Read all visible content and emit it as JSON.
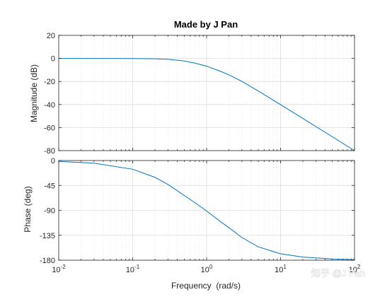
{
  "chart_data": [
    {
      "type": "line",
      "title": "Made by J Pan",
      "xlabel": "",
      "ylabel": "Magnitude (dB)",
      "xscale": "log",
      "xlim": [
        0.01,
        100
      ],
      "ylim": [
        -80,
        20
      ],
      "yticks": [
        20,
        0,
        -20,
        -40,
        -60,
        -80
      ],
      "grid": true,
      "line_color": "#0072bd",
      "series": [
        {
          "name": "",
          "x": [
            0.01,
            0.03,
            0.1,
            0.2,
            0.3,
            0.5,
            0.7,
            1,
            1.5,
            2,
            3,
            5,
            10,
            20,
            50,
            100
          ],
          "y": [
            0,
            -0.01,
            -0.09,
            -0.34,
            -0.79,
            -2.21,
            -4.14,
            -6.74,
            -10.9,
            -14.24,
            -19.91,
            -28.3,
            -40.09,
            -52.06,
            -67.96,
            -80.0
          ]
        }
      ]
    },
    {
      "type": "line",
      "title": "",
      "xlabel": "Frequency  (rad/s)",
      "ylabel": "Phase (deg)",
      "xscale": "log",
      "xlim": [
        0.01,
        100
      ],
      "ylim": [
        -180,
        0
      ],
      "yticks": [
        0,
        -45,
        -90,
        -135,
        -180
      ],
      "xticks": [
        {
          "base": "10",
          "exp": "-2"
        },
        {
          "base": "10",
          "exp": "-1"
        },
        {
          "base": "10",
          "exp": "0"
        },
        {
          "base": "10",
          "exp": "1"
        },
        {
          "base": "10",
          "exp": "2"
        }
      ],
      "grid": true,
      "line_color": "#0072bd",
      "series": [
        {
          "name": "",
          "x": [
            0.01,
            0.03,
            0.1,
            0.2,
            0.3,
            0.5,
            0.7,
            1,
            1.5,
            2,
            3,
            5,
            10,
            20,
            50,
            100
          ],
          "y": [
            -1.6,
            -4.8,
            -15.7,
            -30.3,
            -43.2,
            -63.2,
            -76.4,
            -91.1,
            -109.0,
            -121.2,
            -139.0,
            -155.8,
            -168.4,
            -174.3,
            -177.7,
            -178.9
          ]
        }
      ]
    }
  ],
  "watermark": "知乎 @J Pan"
}
